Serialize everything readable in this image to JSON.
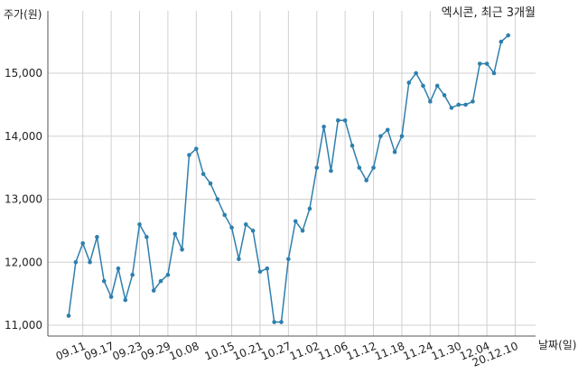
{
  "chart_data": {
    "type": "line",
    "title": "엑시콘, 최근 3개월",
    "ylabel": "주가(원)",
    "xlabel": "날짜(일)",
    "ylim": [
      10800,
      15900
    ],
    "grid": true,
    "colors": {
      "line": "#2e7fad",
      "grid": "#d0d0d0",
      "axis": "#555555"
    },
    "y_ticks": [
      {
        "value": 11000,
        "label": "11,000"
      },
      {
        "value": 12000,
        "label": "12,000"
      },
      {
        "value": 13000,
        "label": "13,000"
      },
      {
        "value": 14000,
        "label": "14,000"
      },
      {
        "value": 15000,
        "label": "15,000"
      }
    ],
    "x_ticks": [
      {
        "index": 2,
        "label": "09.11"
      },
      {
        "index": 6,
        "label": "09.17"
      },
      {
        "index": 10,
        "label": "09.23"
      },
      {
        "index": 14,
        "label": "09.29"
      },
      {
        "index": 18,
        "label": "10.08"
      },
      {
        "index": 23,
        "label": "10.15"
      },
      {
        "index": 27,
        "label": "10.21"
      },
      {
        "index": 31,
        "label": "10.27"
      },
      {
        "index": 35,
        "label": "11.02"
      },
      {
        "index": 39,
        "label": "11.06"
      },
      {
        "index": 43,
        "label": "11.12"
      },
      {
        "index": 47,
        "label": "11.18"
      },
      {
        "index": 51,
        "label": "11.24"
      },
      {
        "index": 55,
        "label": "11.30"
      },
      {
        "index": 59,
        "label": "12.04"
      },
      {
        "index": 63,
        "label": "20.12.10"
      }
    ],
    "values": [
      11150,
      12000,
      12300,
      12000,
      12400,
      11700,
      11450,
      11900,
      11400,
      11800,
      12600,
      12400,
      11550,
      11700,
      11800,
      12450,
      12200,
      13700,
      13800,
      13400,
      13250,
      13000,
      12750,
      12550,
      12050,
      12600,
      12500,
      11850,
      11900,
      11050,
      11050,
      12050,
      12650,
      12500,
      12850,
      13500,
      14150,
      13450,
      14250,
      14250,
      13850,
      13500,
      13300,
      13500,
      14000,
      14100,
      13750,
      14000,
      14850,
      15000,
      14800,
      14550,
      14800,
      14650,
      14450,
      14500,
      14500,
      14550,
      15150,
      15150,
      15000,
      15500,
      15600
    ]
  }
}
